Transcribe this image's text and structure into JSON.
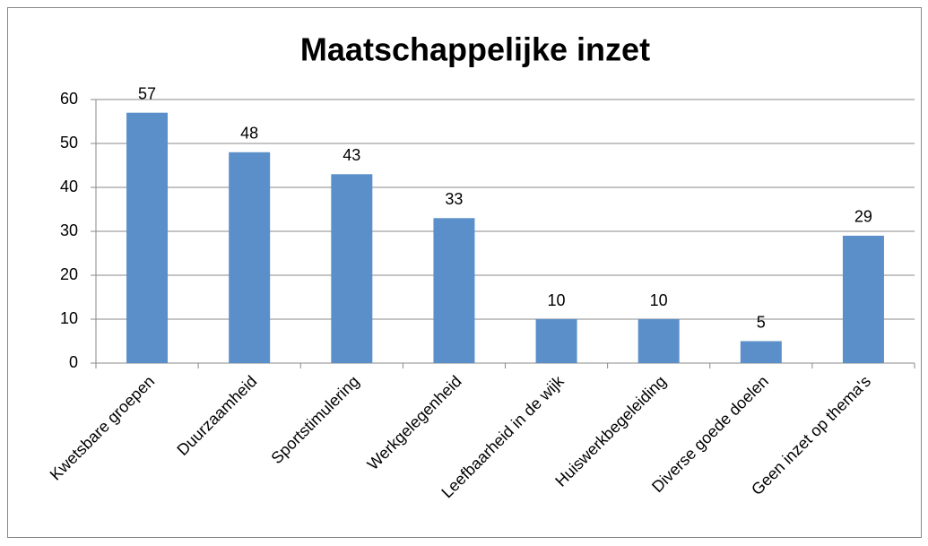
{
  "chart_data": {
    "type": "bar",
    "title": "Maatschappelijke inzet",
    "categories": [
      "Kwetsbare groepen",
      "Duurzaamheid",
      "Sportstimulering",
      "Werkgelegenheid",
      "Leefbaarheid in de wijk",
      "Huiswerkbegeleiding",
      "Diverse goede doelen",
      "Geen inzet op thema's"
    ],
    "values": [
      57,
      48,
      43,
      33,
      10,
      10,
      5,
      29
    ],
    "color": "#5b8fc9",
    "ylim": [
      0,
      60
    ],
    "yticks": [
      0,
      10,
      20,
      30,
      40,
      50,
      60
    ],
    "grid": true
  }
}
